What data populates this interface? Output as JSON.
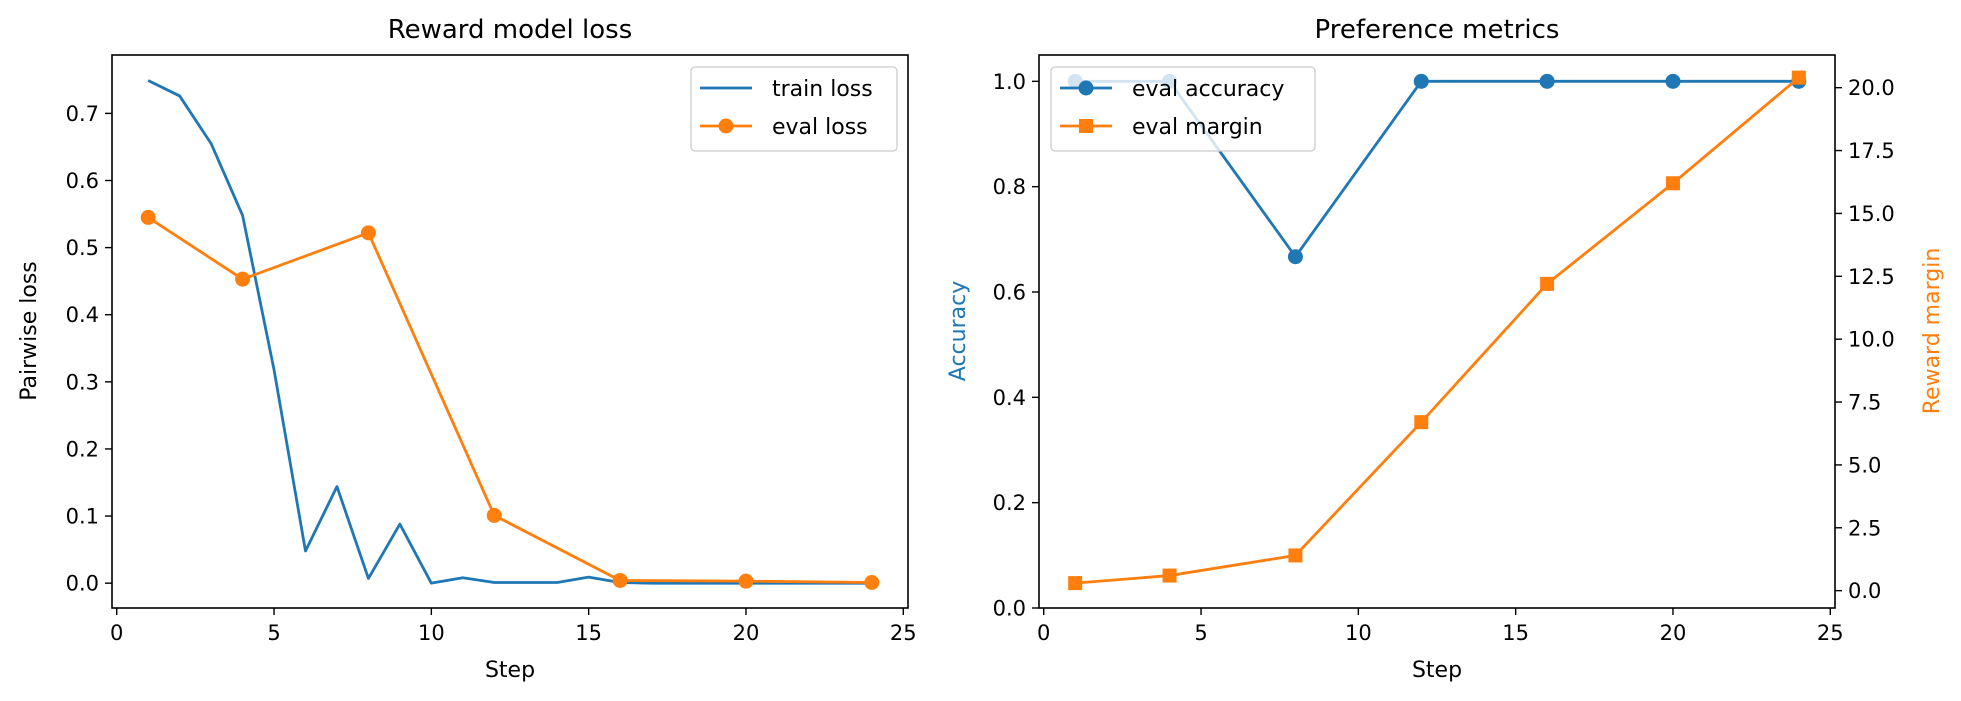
{
  "colors": {
    "blue": "#1f77b4",
    "orange": "#ff7f0e"
  },
  "chart_data": [
    {
      "type": "line",
      "title": "Reward model loss",
      "xlabel": "Step",
      "ylabel": "Pairwise loss",
      "xlim": [
        -0.15,
        25.15
      ],
      "ylim": [
        -0.037,
        0.787
      ],
      "xticks": [
        0,
        5,
        10,
        15,
        20,
        25
      ],
      "yticks": [
        0.0,
        0.1,
        0.2,
        0.3,
        0.4,
        0.5,
        0.6,
        0.7
      ],
      "legend": {
        "placement": "top-right",
        "entries": [
          "train loss",
          "eval loss"
        ]
      },
      "series": [
        {
          "name": "train loss",
          "color": "#1f77b4",
          "marker": "none",
          "x": [
            1,
            2,
            3,
            4,
            5,
            6,
            7,
            8,
            9,
            10,
            11,
            12,
            13,
            14,
            15,
            16,
            17,
            18,
            19,
            20,
            21,
            22,
            23,
            24
          ],
          "y": [
            0.749,
            0.726,
            0.655,
            0.548,
            0.318,
            0.048,
            0.144,
            0.007,
            0.088,
            0.0,
            0.008,
            0.001,
            0.001,
            0.001,
            0.009,
            0.001,
            0.0,
            0.0,
            0.0,
            0.0,
            0.0,
            0.0,
            0.0,
            0.0
          ]
        },
        {
          "name": "eval loss",
          "color": "#ff7f0e",
          "marker": "circle",
          "x": [
            1,
            4,
            8,
            12,
            16,
            20,
            24
          ],
          "y": [
            0.545,
            0.453,
            0.522,
            0.101,
            0.004,
            0.003,
            0.001
          ]
        }
      ]
    },
    {
      "type": "line",
      "title": "Preference metrics",
      "xlabel": "Step",
      "ylabel": "Accuracy",
      "y2label": "Reward margin",
      "xlim": [
        -0.15,
        25.15
      ],
      "ylim": [
        0.0,
        1.05
      ],
      "y2lim": [
        -0.69,
        21.3
      ],
      "xticks": [
        0,
        5,
        10,
        15,
        20,
        25
      ],
      "yticks": [
        0.0,
        0.2,
        0.4,
        0.6,
        0.8,
        1.0
      ],
      "y2ticks": [
        0.0,
        2.5,
        5.0,
        7.5,
        10.0,
        12.5,
        15.0,
        17.5,
        20.0
      ],
      "legend": {
        "placement": "top-left",
        "entries": [
          "eval accuracy",
          "eval margin"
        ]
      },
      "series": [
        {
          "name": "eval accuracy",
          "color": "#1f77b4",
          "marker": "circle",
          "axis": "left",
          "x": [
            1,
            4,
            8,
            12,
            16,
            20,
            24
          ],
          "y": [
            1.0,
            1.0,
            0.667,
            1.0,
            1.0,
            1.0,
            1.0
          ]
        },
        {
          "name": "eval margin",
          "color": "#ff7f0e",
          "marker": "square",
          "axis": "right",
          "x": [
            1,
            4,
            8,
            12,
            16,
            20,
            24
          ],
          "y": [
            0.3,
            0.6,
            1.4,
            6.7,
            12.2,
            16.2,
            20.4
          ]
        }
      ]
    }
  ]
}
